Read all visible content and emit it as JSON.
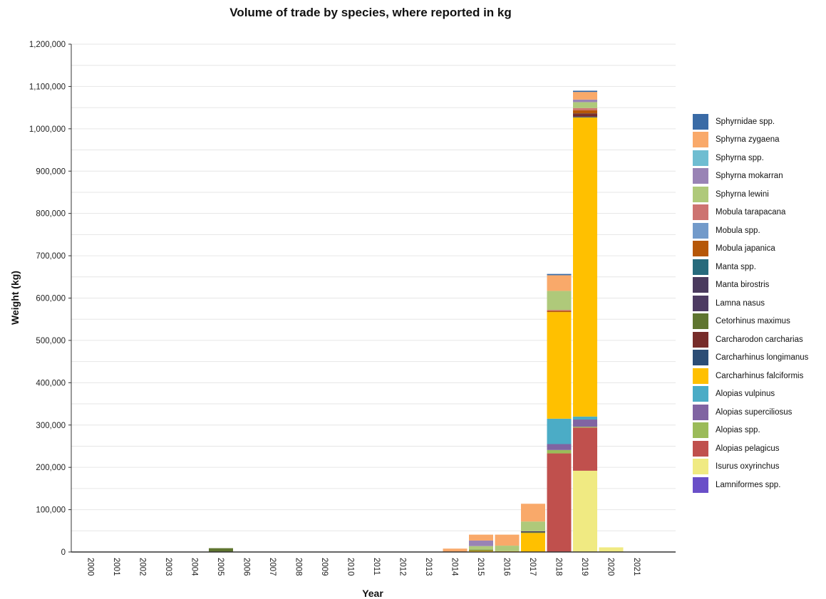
{
  "chart_data": {
    "type": "bar",
    "stacked": true,
    "title": "Volume of trade by species, where reported in kg",
    "xlabel": "Year",
    "ylabel": "Weight (kg)",
    "ylim": [
      0,
      1200000
    ],
    "yticks": [
      0,
      100000,
      200000,
      300000,
      400000,
      500000,
      600000,
      700000,
      800000,
      900000,
      1000000,
      1100000,
      1200000
    ],
    "ytick_labels": [
      "0",
      "100,000",
      "200,000",
      "300,000",
      "400,000",
      "500,000",
      "600,000",
      "700,000",
      "800,000",
      "900,000",
      "1,000,000",
      "1,100,000",
      "1,200,000"
    ],
    "grid": true,
    "legend_position": "right",
    "categories": [
      "2000",
      "2001",
      "2002",
      "2003",
      "2004",
      "2005",
      "2006",
      "2007",
      "2008",
      "2009",
      "2010",
      "2011",
      "2012",
      "2013",
      "2014",
      "2015",
      "2016",
      "2017",
      "2018",
      "2019",
      "2020",
      "2021"
    ],
    "series": [
      {
        "name": "Lamniformes spp.",
        "color": "#6a4fc8",
        "values": [
          0,
          0,
          0,
          0,
          0,
          0,
          0,
          0,
          0,
          0,
          0,
          0,
          0,
          0,
          0,
          0,
          0,
          0,
          0,
          0,
          0,
          0
        ]
      },
      {
        "name": "Isurus oxyrinchus",
        "color": "#f0ea82",
        "values": [
          0,
          0,
          0,
          0,
          0,
          0,
          0,
          0,
          0,
          0,
          0,
          0,
          0,
          0,
          0,
          0,
          0,
          0,
          0,
          192000,
          11000,
          0
        ]
      },
      {
        "name": "Alopias pelagicus",
        "color": "#c0504d",
        "values": [
          0,
          0,
          0,
          0,
          0,
          0,
          0,
          0,
          0,
          0,
          0,
          0,
          0,
          0,
          0,
          0,
          0,
          0,
          233000,
          102000,
          0,
          0
        ]
      },
      {
        "name": "Alopias spp.",
        "color": "#9bbb59",
        "values": [
          0,
          0,
          0,
          0,
          0,
          0,
          0,
          0,
          0,
          0,
          0,
          0,
          0,
          0,
          0,
          0,
          0,
          0,
          8000,
          2000,
          0,
          0
        ]
      },
      {
        "name": "Alopias superciliosus",
        "color": "#8064a2",
        "values": [
          0,
          0,
          0,
          0,
          0,
          0,
          0,
          0,
          0,
          0,
          0,
          0,
          0,
          0,
          0,
          0,
          0,
          0,
          14000,
          17000,
          0,
          0
        ]
      },
      {
        "name": "Alopias vulpinus",
        "color": "#4bacc6",
        "values": [
          0,
          0,
          0,
          0,
          0,
          0,
          0,
          0,
          0,
          0,
          0,
          0,
          0,
          0,
          0,
          0,
          0,
          0,
          60000,
          7000,
          0,
          0
        ]
      },
      {
        "name": "Carcharhinus falciformis",
        "color": "#ffc000",
        "values": [
          0,
          0,
          0,
          0,
          0,
          0,
          0,
          0,
          0,
          0,
          0,
          0,
          0,
          0,
          0,
          3000,
          2000,
          45000,
          252000,
          707000,
          0,
          0
        ]
      },
      {
        "name": "Carcharhinus longimanus",
        "color": "#2c4d75",
        "values": [
          0,
          0,
          0,
          0,
          0,
          0,
          0,
          0,
          0,
          0,
          0,
          0,
          0,
          0,
          0,
          0,
          0,
          0,
          0,
          2000,
          0,
          0
        ]
      },
      {
        "name": "Carcharodon carcharias",
        "color": "#772c2a",
        "values": [
          0,
          0,
          0,
          0,
          0,
          0,
          0,
          0,
          0,
          0,
          0,
          0,
          0,
          0,
          0,
          0,
          0,
          0,
          0,
          6000,
          0,
          0
        ]
      },
      {
        "name": "Cetorhinus maximus",
        "color": "#5f7530",
        "values": [
          0,
          0,
          0,
          0,
          0,
          9000,
          0,
          0,
          0,
          0,
          0,
          0,
          0,
          0,
          0,
          2000,
          0,
          2000,
          0,
          0,
          0,
          0
        ]
      },
      {
        "name": "Lamna nasus",
        "color": "#4d3b62",
        "values": [
          0,
          0,
          0,
          0,
          0,
          0,
          0,
          0,
          0,
          0,
          0,
          0,
          0,
          0,
          0,
          0,
          0,
          2000,
          0,
          1000,
          0,
          0
        ]
      },
      {
        "name": "Manta birostris",
        "color": "#4a3a5e",
        "values": [
          0,
          0,
          0,
          0,
          0,
          0,
          0,
          0,
          0,
          0,
          0,
          0,
          0,
          0,
          0,
          0,
          0,
          0,
          0,
          0,
          0,
          0
        ]
      },
      {
        "name": "Manta spp.",
        "color": "#276a7c",
        "values": [
          0,
          0,
          0,
          0,
          0,
          0,
          0,
          0,
          0,
          0,
          0,
          0,
          0,
          0,
          0,
          0,
          0,
          0,
          0,
          0,
          0,
          0
        ]
      },
      {
        "name": "Mobula japanica",
        "color": "#b65708",
        "values": [
          0,
          0,
          0,
          0,
          0,
          0,
          0,
          0,
          0,
          0,
          0,
          0,
          0,
          0,
          0,
          0,
          0,
          0,
          3000,
          8000,
          0,
          0
        ]
      },
      {
        "name": "Mobula spp.",
        "color": "#729aca",
        "values": [
          0,
          0,
          0,
          0,
          0,
          0,
          0,
          0,
          0,
          0,
          0,
          0,
          0,
          0,
          0,
          0,
          0,
          0,
          0,
          0,
          0,
          0
        ]
      },
      {
        "name": "Mobula tarapacana",
        "color": "#cd7371",
        "values": [
          0,
          0,
          0,
          0,
          0,
          0,
          0,
          0,
          0,
          0,
          0,
          0,
          0,
          0,
          0,
          0,
          0,
          0,
          2000,
          5000,
          0,
          0
        ]
      },
      {
        "name": "Sphyrna lewini",
        "color": "#afc97a",
        "values": [
          0,
          0,
          0,
          0,
          0,
          0,
          0,
          0,
          0,
          0,
          0,
          0,
          0,
          0,
          0,
          9000,
          13000,
          23000,
          45000,
          14000,
          0,
          0
        ]
      },
      {
        "name": "Sphyrna mokarran",
        "color": "#9983b5",
        "values": [
          0,
          0,
          0,
          0,
          0,
          0,
          0,
          0,
          0,
          0,
          0,
          0,
          0,
          0,
          0,
          13000,
          0,
          0,
          0,
          6000,
          0,
          0
        ]
      },
      {
        "name": "Sphyrna spp.",
        "color": "#6fbdd1",
        "values": [
          0,
          0,
          0,
          0,
          0,
          0,
          0,
          0,
          0,
          0,
          0,
          0,
          0,
          0,
          0,
          0,
          0,
          0,
          0,
          0,
          0,
          0
        ]
      },
      {
        "name": "Sphyrna zygaena",
        "color": "#f9a96a",
        "values": [
          0,
          0,
          0,
          0,
          0,
          0,
          0,
          0,
          0,
          0,
          0,
          0,
          0,
          0,
          8000,
          14000,
          26000,
          42000,
          37000,
          18000,
          0,
          0
        ]
      },
      {
        "name": "Sphyrnidae spp.",
        "color": "#3a6ba6",
        "values": [
          0,
          0,
          0,
          0,
          0,
          0,
          0,
          0,
          0,
          0,
          0,
          0,
          0,
          0,
          0,
          0,
          0,
          0,
          3000,
          3000,
          0,
          0
        ]
      }
    ],
    "legend_order": [
      "Sphyrnidae spp.",
      "Sphyrna zygaena",
      "Sphyrna spp.",
      "Sphyrna mokarran",
      "Sphyrna lewini",
      "Mobula tarapacana",
      "Mobula spp.",
      "Mobula japanica",
      "Manta spp.",
      "Manta birostris",
      "Lamna nasus",
      "Cetorhinus maximus",
      "Carcharodon carcharias",
      "Carcharhinus longimanus",
      "Carcharhinus falciformis",
      "Alopias vulpinus",
      "Alopias superciliosus",
      "Alopias spp.",
      "Alopias pelagicus",
      "Isurus oxyrinchus",
      "Lamniformes spp."
    ]
  }
}
